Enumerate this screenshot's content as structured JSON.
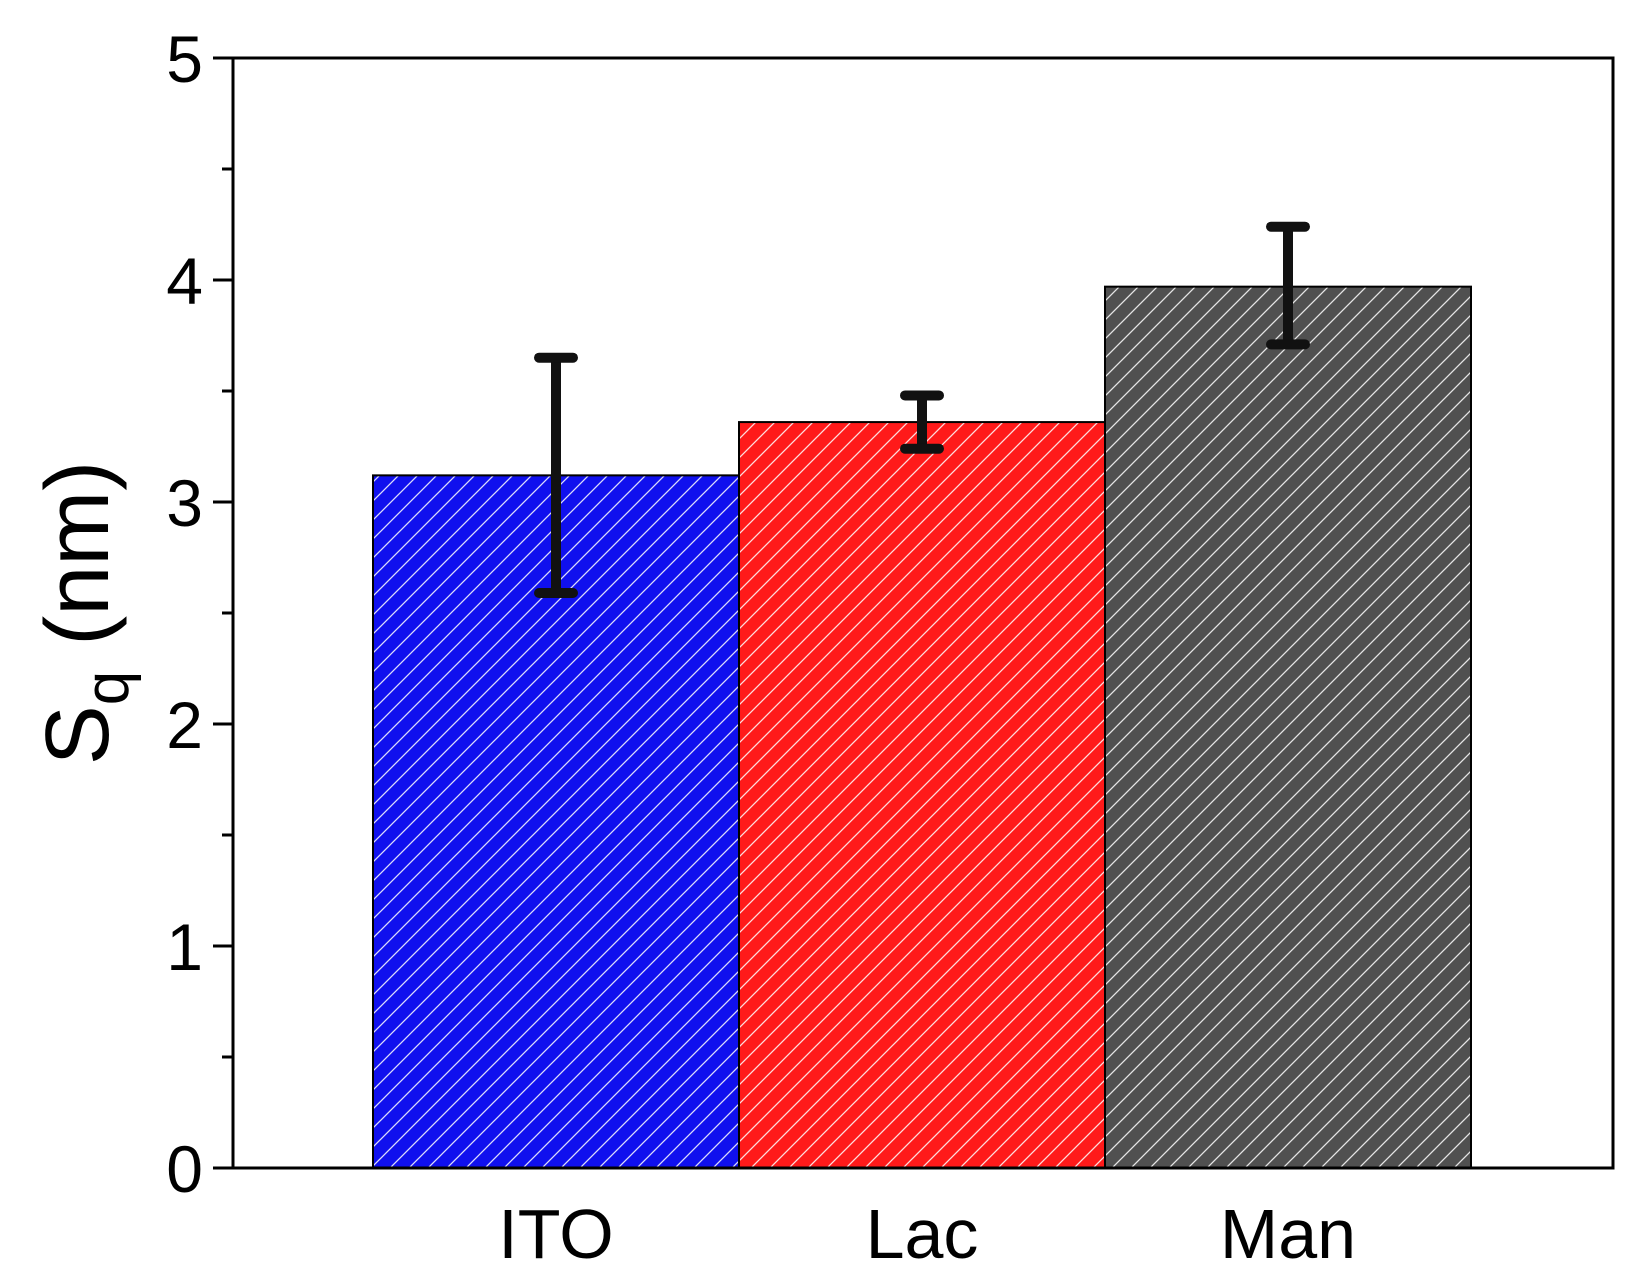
{
  "chart_data": {
    "type": "bar",
    "title": "",
    "ylabel_main": "S",
    "ylabel_sub": "q",
    "ylabel_unit": " (nm)",
    "xlabel": "",
    "ylim": [
      0,
      5
    ],
    "yticks": [
      "0",
      "1",
      "2",
      "3",
      "4",
      "5"
    ],
    "minor_ticks": true,
    "grid": false,
    "categories": [
      "ITO",
      "Lac",
      "Man"
    ],
    "values": [
      3.12,
      3.36,
      3.97
    ],
    "errors": [
      {
        "low": 2.59,
        "high": 3.65
      },
      {
        "low": 3.24,
        "high": 3.48
      },
      {
        "low": 3.71,
        "high": 4.24
      }
    ],
    "colors": [
      "#1010ee",
      "#ff1a1a",
      "#505050"
    ],
    "hatch": "diagonal"
  }
}
